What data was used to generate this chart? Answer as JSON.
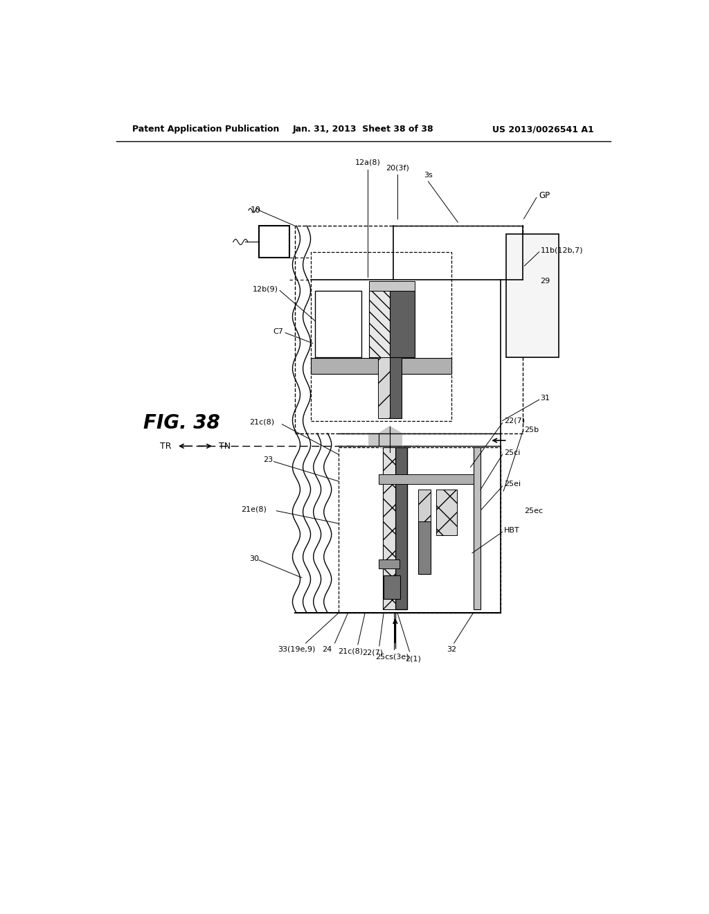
{
  "title": "FIG. 38",
  "header_left": "Patent Application Publication",
  "header_center": "Jan. 31, 2013  Sheet 38 of 38",
  "header_right": "US 2013/0026541 A1",
  "bg_color": "#ffffff",
  "fg_color": "#000000"
}
